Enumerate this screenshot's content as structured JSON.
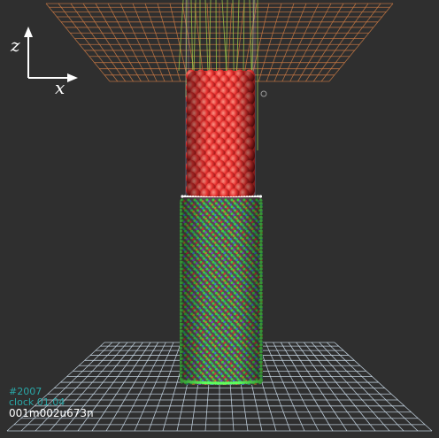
{
  "viewer": {
    "axes": {
      "vertical_label": "z",
      "horizontal_label": "x"
    },
    "status": {
      "step": "#2007",
      "clock": "clock 01.04",
      "code": "001m002u673n"
    },
    "colors": {
      "background": "#2f2f2f",
      "top_grid": "#c97a44",
      "bottom_grid": "#cfe0ee",
      "upper_particles": "#e8312f",
      "lower_particles": "#3ad43a",
      "interface": "#ffffff",
      "bond_lines": "#9fcf4a",
      "step_text": "#2aa7a7",
      "clock_text": "#2aa7a7",
      "code_text": "#ffffff"
    },
    "icons": {
      "axes": "axes-icon",
      "probe": "probe-marker-icon"
    }
  }
}
